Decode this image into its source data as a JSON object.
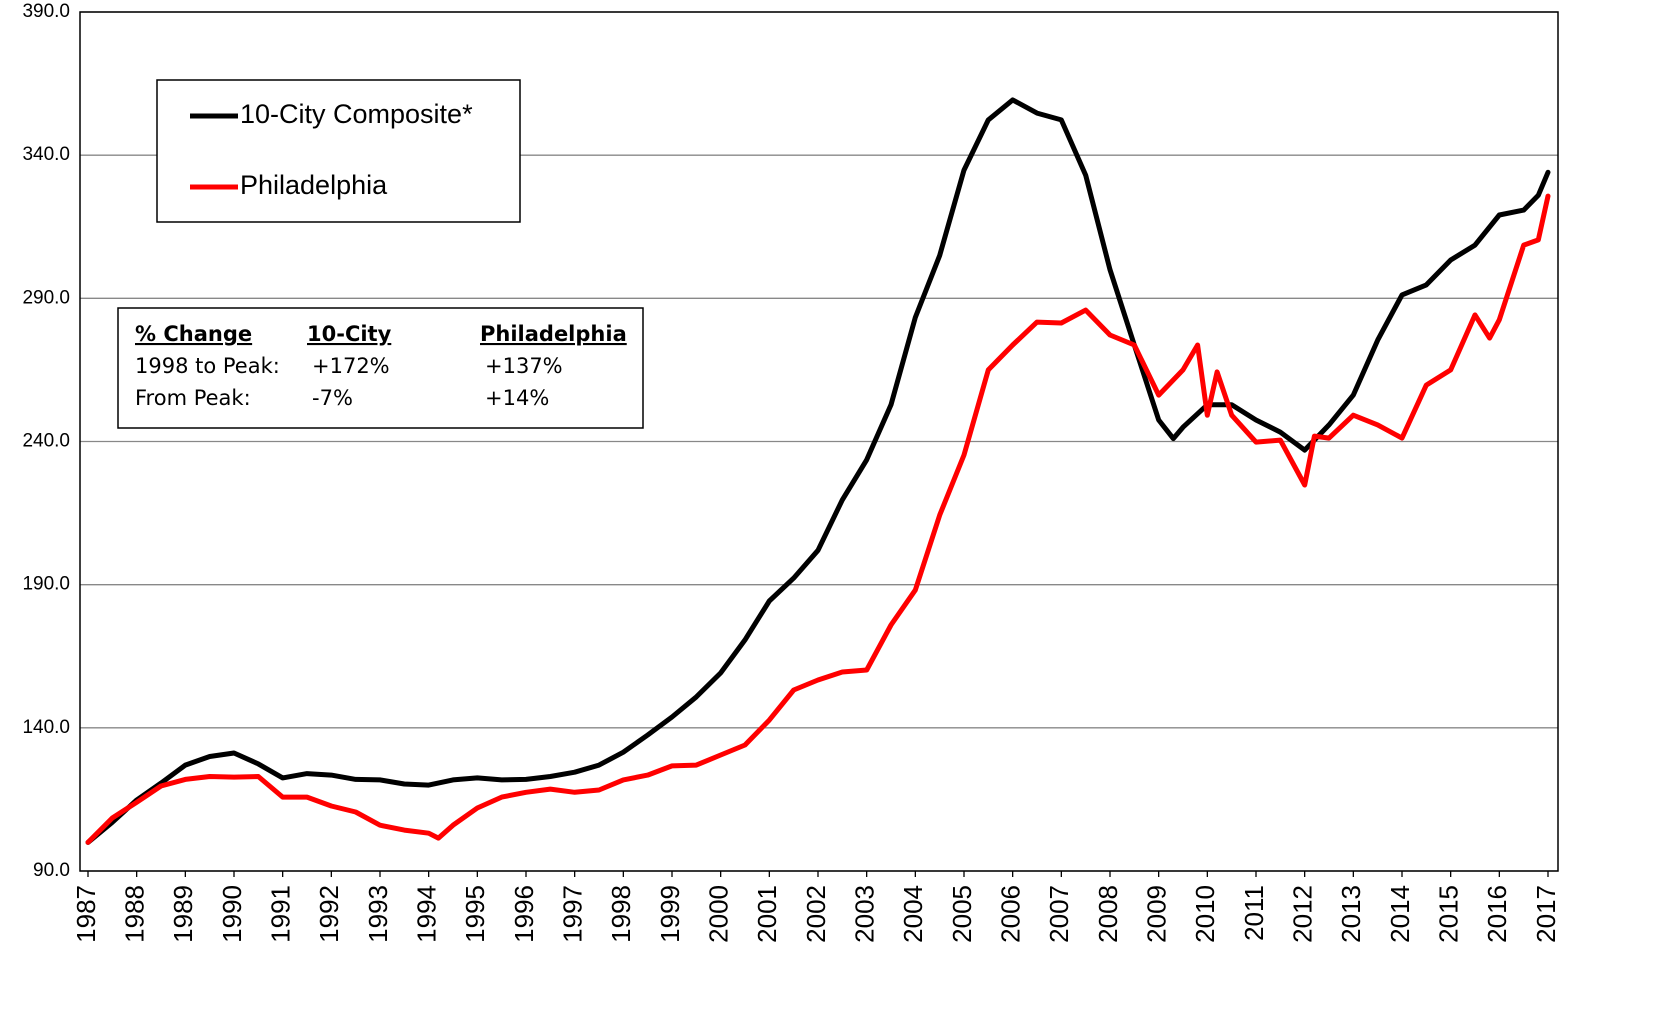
{
  "chart_data": {
    "type": "line",
    "xlim": [
      1987,
      2017
    ],
    "xticks": [
      1987,
      1988,
      1989,
      1990,
      1991,
      1992,
      1993,
      1994,
      1995,
      1996,
      1997,
      1998,
      1999,
      2000,
      2001,
      2002,
      2003,
      2004,
      2005,
      2006,
      2007,
      2008,
      2009,
      2010,
      2011,
      2012,
      2013,
      2014,
      2015,
      2016,
      2017
    ],
    "ylim": [
      90,
      390
    ],
    "yticks": [
      {
        "value": 90,
        "label": "90.0"
      },
      {
        "value": 140,
        "label": "140.0"
      },
      {
        "value": 190,
        "label": "190.0"
      },
      {
        "value": 240,
        "label": "240.0"
      },
      {
        "value": 290,
        "label": "290.0"
      },
      {
        "value": 340,
        "label": "340.0"
      },
      {
        "value": 390,
        "label": "390.0"
      }
    ],
    "grid": true,
    "legend": "upper left",
    "series": [
      {
        "name": "10-City Composite*",
        "color": "#000000",
        "x": [
          1987,
          1987.5,
          1988,
          1988.5,
          1989,
          1989.5,
          1990,
          1990.5,
          1991,
          1991.5,
          1992,
          1992.5,
          1993,
          1993.5,
          1994,
          1994.5,
          1995,
          1995.5,
          1996,
          1996.5,
          1997,
          1997.5,
          1998,
          1998.5,
          1999,
          1999.5,
          2000,
          2000.5,
          2001,
          2001.5,
          2002,
          2002.5,
          2003,
          2003.5,
          2004,
          2004.5,
          2005,
          2005.5,
          2006,
          2006.5,
          2007,
          2007.5,
          2008,
          2008.5,
          2009,
          2009.3,
          2009.5,
          2010,
          2010.5,
          2011,
          2011.5,
          2012,
          2012.5,
          2013,
          2013.5,
          2014,
          2014.5,
          2015,
          2015.5,
          2016,
          2016.5,
          2016.8,
          2017
        ],
        "values": [
          100,
          107,
          114.8,
          120.7,
          127,
          130,
          131.2,
          127.4,
          122.5,
          124,
          123.5,
          122,
          121.8,
          120.4,
          120,
          121.8,
          122.5,
          121.8,
          122,
          123,
          124.5,
          127,
          131.5,
          137.5,
          143.8,
          150.8,
          159.2,
          170.7,
          184.3,
          192.3,
          202,
          219.6,
          233.6,
          252.8,
          283.3,
          305,
          334.8,
          352.3,
          359.3,
          354.7,
          352.3,
          333,
          300,
          273.7,
          247.5,
          241,
          245,
          252.8,
          252.8,
          247.5,
          243.3,
          237,
          245.8,
          256.2,
          275.4,
          291.2,
          294.7,
          303.4,
          308.6,
          319.1,
          320.8,
          326,
          334
        ]
      },
      {
        "name": "Philadelphia",
        "color": "#ff0000",
        "x": [
          1987,
          1987.5,
          1988,
          1988.5,
          1989,
          1989.5,
          1990,
          1990.5,
          1991,
          1991.5,
          1992,
          1992.5,
          1993,
          1993.5,
          1994,
          1994.2,
          1994.5,
          1995,
          1995.5,
          1996,
          1996.5,
          1997,
          1997.5,
          1998,
          1998.5,
          1999,
          1999.5,
          2000,
          2000.5,
          2001,
          2001.5,
          2002,
          2002.5,
          2003,
          2003.5,
          2004,
          2004.5,
          2005,
          2005.5,
          2006,
          2006.5,
          2007,
          2007.5,
          2008,
          2008.5,
          2009,
          2009.5,
          2009.8,
          2010,
          2010.2,
          2010.5,
          2011,
          2011.5,
          2012,
          2012.2,
          2012.5,
          2013,
          2013.5,
          2014,
          2014.5,
          2015,
          2015.5,
          2015.8,
          2016,
          2016.5,
          2016.8,
          2017
        ],
        "values": [
          100,
          108.5,
          114,
          119.7,
          122,
          123,
          122.8,
          123,
          115.8,
          115.8,
          112.7,
          110.6,
          106,
          104.3,
          103.2,
          101.5,
          106,
          112,
          115.8,
          117.5,
          118.6,
          117.5,
          118.3,
          121.8,
          123.5,
          126.7,
          127,
          130.5,
          134,
          142.7,
          153.2,
          156.7,
          159.5,
          160.2,
          175.9,
          188.1,
          214.3,
          235.3,
          265,
          273.7,
          281.7,
          281.4,
          285.9,
          277.2,
          273.7,
          256.2,
          265,
          273.7,
          249.2,
          264.3,
          249.2,
          239.8,
          240.5,
          224.8,
          241.9,
          241.2,
          249.2,
          245.8,
          241.2,
          259.7,
          265,
          284.2,
          276.1,
          282.5,
          308.6,
          310.4,
          325.7
        ]
      }
    ],
    "annotation_table": {
      "header": [
        "% Change",
        "10-City",
        "Philadelphia"
      ],
      "rows": [
        [
          "1998 to Peak:",
          "+172%",
          "+137%"
        ],
        [
          "From Peak:",
          "-7%",
          "+14%"
        ]
      ]
    }
  }
}
